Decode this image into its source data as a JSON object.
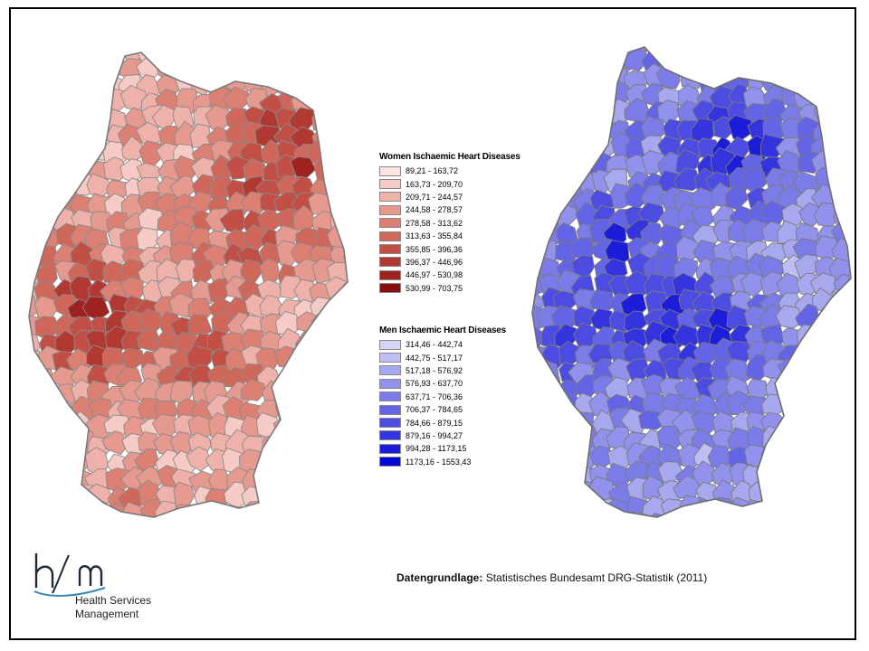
{
  "source": {
    "label": "Datengrundlage:",
    "text": "Statistisches Bundesamt DRG-Statistik (2011)"
  },
  "logo": {
    "mark": "hsm",
    "line1": "Health Services",
    "line2": "Management"
  },
  "legends": {
    "women": {
      "title": "Women Ischaemic Heart Diseases",
      "classes": [
        {
          "label": "89,21 - 163,72",
          "color": "#fbe4e2"
        },
        {
          "label": "163,73 - 209,70",
          "color": "#f6cbc6"
        },
        {
          "label": "209,71 - 244,57",
          "color": "#efb2aa"
        },
        {
          "label": "244,58 - 278,57",
          "color": "#e6998e"
        },
        {
          "label": "278,58 - 313,62",
          "color": "#dc8074"
        },
        {
          "label": "313,63 - 355,84",
          "color": "#cf675b"
        },
        {
          "label": "355,85 - 396,36",
          "color": "#c14f45"
        },
        {
          "label": "396,37 - 446,96",
          "color": "#b13932"
        },
        {
          "label": "446,97 - 530,98",
          "color": "#9e2320"
        },
        {
          "label": "530,99 - 703,75",
          "color": "#880d10"
        }
      ]
    },
    "men": {
      "title": "Men Ischaemic Heart Diseases",
      "classes": [
        {
          "label": "314,46 - 442,74",
          "color": "#d4d4f4"
        },
        {
          "label": "442,75 - 517,17",
          "color": "#bebef2"
        },
        {
          "label": "517,18 - 576,92",
          "color": "#a8a8ef"
        },
        {
          "label": "576,93 - 637,70",
          "color": "#9292ec"
        },
        {
          "label": "637,71 - 706,36",
          "color": "#7c7ce9"
        },
        {
          "label": "706,37 - 784,65",
          "color": "#6464e6"
        },
        {
          "label": "784,66 - 879,15",
          "color": "#4c4ce2"
        },
        {
          "label": "879,16 - 994,27",
          "color": "#3434de"
        },
        {
          "label": "994,28 - 1173,15",
          "color": "#1c1cdb"
        },
        {
          "label": "1173,16 - 1553,43",
          "color": "#0505d6"
        }
      ]
    }
  },
  "maps": {
    "women": {
      "outline_color": "#8a8a8a"
    },
    "men": {
      "outline_color": "#7a7a7a"
    }
  }
}
